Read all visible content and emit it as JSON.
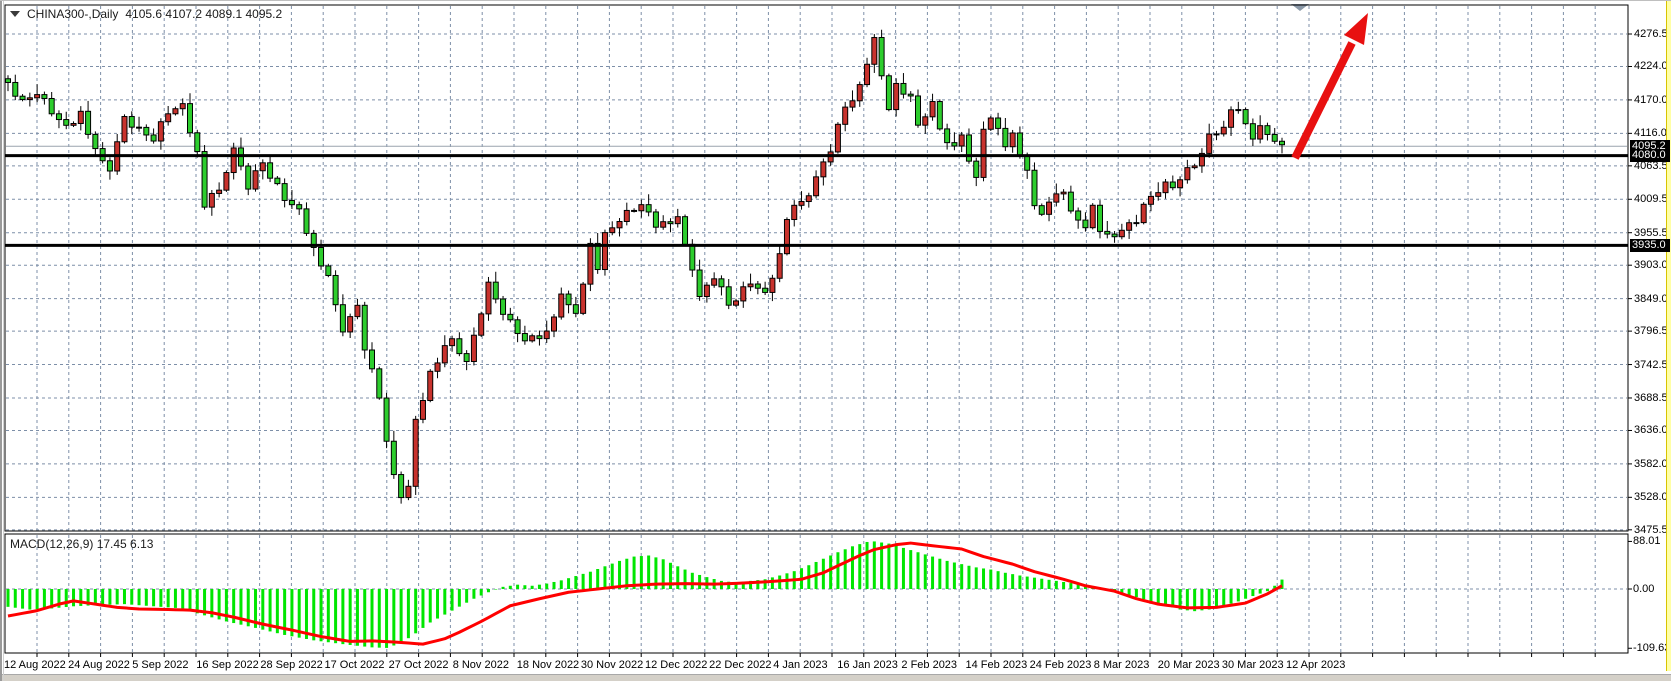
{
  "window": {
    "symbol_label": "CHINA300-,Daily",
    "ohlc_readout_text": "4105.6 4107.2 4089.1 4095.2"
  },
  "chart_data": {
    "type": "candlestick",
    "title": "CHINA300-,Daily",
    "timeframe": "Daily",
    "ohlc_readout": {
      "open": 4105.6,
      "high": 4107.2,
      "low": 4089.1,
      "close": 4095.2
    },
    "last_price": 4095.2,
    "horizontal_levels": [
      4080.0,
      3935.0
    ],
    "ylim": [
      3462,
      4323
    ],
    "y_ticks": [
      4276.5,
      4224.0,
      4170.0,
      4116.0,
      4063.5,
      4009.5,
      3955.5,
      3903.0,
      3849.0,
      3796.5,
      3742.5,
      3688.5,
      3636.0,
      3582.0,
      3528.0,
      3475.5
    ],
    "highlight_tags": [
      "4095.2",
      "4080.0",
      "3935.0"
    ],
    "x_tick_labels": [
      "12 Aug 2022",
      "24 Aug 2022",
      "5 Sep 2022",
      "16 Sep 2022",
      "28 Sep 2022",
      "17 Oct 2022",
      "27 Oct 2022",
      "8 Nov 2022",
      "18 Nov 2022",
      "30 Nov 2022",
      "12 Dec 2022",
      "22 Dec 2022",
      "4 Jan 2023",
      "16 Jan 2023",
      "2 Feb 2023",
      "14 Feb 2023",
      "24 Feb 2023",
      "8 Mar 2023",
      "20 Mar 2023",
      "30 Mar 2023",
      "12 Apr 2023"
    ],
    "candle_count": 176,
    "price_anchors": [
      [
        0,
        4195
      ],
      [
        2,
        4165
      ],
      [
        4,
        4185
      ],
      [
        6,
        4150
      ],
      [
        8,
        4125
      ],
      [
        10,
        4150
      ],
      [
        12,
        4085
      ],
      [
        14,
        4060
      ],
      [
        16,
        4140
      ],
      [
        18,
        4120
      ],
      [
        20,
        4110
      ],
      [
        22,
        4150
      ],
      [
        24,
        4160
      ],
      [
        26,
        4085
      ],
      [
        27,
        4000
      ],
      [
        29,
        4025
      ],
      [
        31,
        4090
      ],
      [
        33,
        4030
      ],
      [
        35,
        4070
      ],
      [
        38,
        4010
      ],
      [
        40,
        3990
      ],
      [
        42,
        3930
      ],
      [
        44,
        3880
      ],
      [
        46,
        3800
      ],
      [
        48,
        3835
      ],
      [
        49,
        3770
      ],
      [
        51,
        3690
      ],
      [
        53,
        3560
      ],
      [
        54,
        3530
      ],
      [
        55,
        3545
      ],
      [
        56,
        3650
      ],
      [
        58,
        3730
      ],
      [
        61,
        3785
      ],
      [
        63,
        3745
      ],
      [
        66,
        3870
      ],
      [
        69,
        3810
      ],
      [
        71,
        3780
      ],
      [
        74,
        3795
      ],
      [
        76,
        3850
      ],
      [
        78,
        3830
      ],
      [
        79,
        3870
      ],
      [
        80,
        3935
      ],
      [
        81,
        3900
      ],
      [
        82,
        3950
      ],
      [
        84,
        3980
      ],
      [
        87,
        4000
      ],
      [
        89,
        3970
      ],
      [
        92,
        3975
      ],
      [
        94,
        3900
      ],
      [
        95,
        3850
      ],
      [
        97,
        3885
      ],
      [
        99,
        3840
      ],
      [
        102,
        3875
      ],
      [
        104,
        3855
      ],
      [
        106,
        3920
      ],
      [
        107,
        3980
      ],
      [
        110,
        4020
      ],
      [
        113,
        4090
      ],
      [
        115,
        4160
      ],
      [
        117,
        4190
      ],
      [
        119,
        4270
      ],
      [
        120,
        4205
      ],
      [
        121,
        4160
      ],
      [
        122,
        4195
      ],
      [
        124,
        4170
      ],
      [
        125,
        4130
      ],
      [
        127,
        4165
      ],
      [
        128,
        4120
      ],
      [
        130,
        4090
      ],
      [
        131,
        4115
      ],
      [
        133,
        4040
      ],
      [
        134,
        4125
      ],
      [
        135,
        4140
      ],
      [
        137,
        4100
      ],
      [
        138,
        4115
      ],
      [
        140,
        4050
      ],
      [
        141,
        4000
      ],
      [
        142,
        3990
      ],
      [
        144,
        4015
      ],
      [
        145,
        4025
      ],
      [
        146,
        3985
      ],
      [
        148,
        3970
      ],
      [
        149,
        3995
      ],
      [
        150,
        3960
      ],
      [
        152,
        3945
      ],
      [
        153,
        3965
      ],
      [
        155,
        3975
      ],
      [
        156,
        3995
      ],
      [
        157,
        4015
      ],
      [
        159,
        4035
      ],
      [
        160,
        4025
      ],
      [
        161,
        4045
      ],
      [
        163,
        4065
      ],
      [
        164,
        4090
      ],
      [
        165,
        4110
      ],
      [
        167,
        4125
      ],
      [
        168,
        4150
      ],
      [
        169,
        4160
      ],
      [
        170,
        4130
      ],
      [
        171,
        4110
      ],
      [
        172,
        4122
      ],
      [
        174,
        4108
      ],
      [
        175,
        4095.2
      ]
    ],
    "annotation_arrow": {
      "color": "#e81010",
      "direction": "up-right",
      "from_price_level": 4080.0
    },
    "colors": {
      "bullish_candle": "#c8322d",
      "bearish_candle": "#2dcd2d",
      "macd_histogram": "#00e600",
      "macd_signal": "#ff0000",
      "level_lines": "#000000",
      "grid": "#7d8fa8"
    },
    "macd": {
      "label": "MACD(12,26,9) 17.45 6.13",
      "params": [
        12,
        26,
        9
      ],
      "macd_value": 17.45,
      "signal_value": 6.13,
      "y_ticks": [
        "88.01",
        "0.00",
        "-109.63"
      ],
      "ylim": [
        -109.63,
        88.01
      ],
      "histogram_anchors": [
        [
          0,
          -33
        ],
        [
          3,
          -38
        ],
        [
          6,
          -36
        ],
        [
          9,
          -32
        ],
        [
          12,
          -30
        ],
        [
          16,
          -28
        ],
        [
          20,
          -32
        ],
        [
          24,
          -36
        ],
        [
          26,
          -45
        ],
        [
          30,
          -60
        ],
        [
          34,
          -72
        ],
        [
          38,
          -85
        ],
        [
          42,
          -95
        ],
        [
          46,
          -102
        ],
        [
          50,
          -108
        ],
        [
          52,
          -109
        ],
        [
          54,
          -100
        ],
        [
          56,
          -82
        ],
        [
          58,
          -62
        ],
        [
          61,
          -40
        ],
        [
          64,
          -18
        ],
        [
          66,
          -6
        ],
        [
          68,
          4
        ],
        [
          70,
          8
        ],
        [
          72,
          6
        ],
        [
          74,
          10
        ],
        [
          76,
          16
        ],
        [
          78,
          24
        ],
        [
          80,
          32
        ],
        [
          82,
          42
        ],
        [
          84,
          52
        ],
        [
          86,
          60
        ],
        [
          88,
          62
        ],
        [
          90,
          55
        ],
        [
          92,
          42
        ],
        [
          94,
          30
        ],
        [
          96,
          22
        ],
        [
          98,
          15
        ],
        [
          100,
          12
        ],
        [
          102,
          15
        ],
        [
          104,
          18
        ],
        [
          106,
          25
        ],
        [
          108,
          33
        ],
        [
          110,
          44
        ],
        [
          112,
          56
        ],
        [
          114,
          68
        ],
        [
          116,
          79
        ],
        [
          118,
          87
        ],
        [
          119,
          88
        ],
        [
          121,
          84
        ],
        [
          123,
          76
        ],
        [
          125,
          68
        ],
        [
          127,
          60
        ],
        [
          129,
          52
        ],
        [
          131,
          46
        ],
        [
          133,
          40
        ],
        [
          135,
          36
        ],
        [
          137,
          30
        ],
        [
          139,
          25
        ],
        [
          141,
          21
        ],
        [
          143,
          17
        ],
        [
          145,
          13
        ],
        [
          147,
          9
        ],
        [
          149,
          5
        ],
        [
          151,
          0
        ],
        [
          153,
          -8
        ],
        [
          155,
          -15
        ],
        [
          157,
          -23
        ],
        [
          159,
          -30
        ],
        [
          161,
          -38
        ],
        [
          163,
          -41
        ],
        [
          165,
          -38
        ],
        [
          167,
          -31
        ],
        [
          169,
          -23
        ],
        [
          171,
          -13
        ],
        [
          173,
          -4
        ],
        [
          174,
          6
        ],
        [
          175,
          17.45
        ]
      ],
      "signal_anchors": [
        [
          0,
          -50
        ],
        [
          4,
          -40
        ],
        [
          7,
          -28
        ],
        [
          9,
          -22
        ],
        [
          12,
          -28
        ],
        [
          15,
          -34
        ],
        [
          18,
          -37
        ],
        [
          22,
          -38
        ],
        [
          25,
          -39
        ],
        [
          28,
          -44
        ],
        [
          31,
          -52
        ],
        [
          35,
          -65
        ],
        [
          39,
          -76
        ],
        [
          43,
          -88
        ],
        [
          47,
          -97
        ],
        [
          50,
          -96
        ],
        [
          53,
          -98
        ],
        [
          57,
          -102
        ],
        [
          60,
          -92
        ],
        [
          62,
          -80
        ],
        [
          65,
          -60
        ],
        [
          69,
          -31
        ],
        [
          73,
          -18
        ],
        [
          77,
          -6
        ],
        [
          81,
          0
        ],
        [
          85,
          6
        ],
        [
          89,
          9
        ],
        [
          93,
          10
        ],
        [
          97,
          9
        ],
        [
          101,
          11
        ],
        [
          105,
          14
        ],
        [
          109,
          18
        ],
        [
          112,
          30
        ],
        [
          114,
          43
        ],
        [
          117,
          62
        ],
        [
          119,
          73
        ],
        [
          122,
          82
        ],
        [
          124,
          85
        ],
        [
          127,
          80
        ],
        [
          131,
          74
        ],
        [
          134,
          60
        ],
        [
          138,
          46
        ],
        [
          141,
          32
        ],
        [
          145,
          18
        ],
        [
          148,
          6
        ],
        [
          152,
          -4
        ],
        [
          155,
          -18
        ],
        [
          158,
          -28
        ],
        [
          162,
          -35
        ],
        [
          166,
          -34
        ],
        [
          170,
          -26
        ],
        [
          173,
          -9
        ],
        [
          175,
          6.13
        ]
      ]
    }
  }
}
